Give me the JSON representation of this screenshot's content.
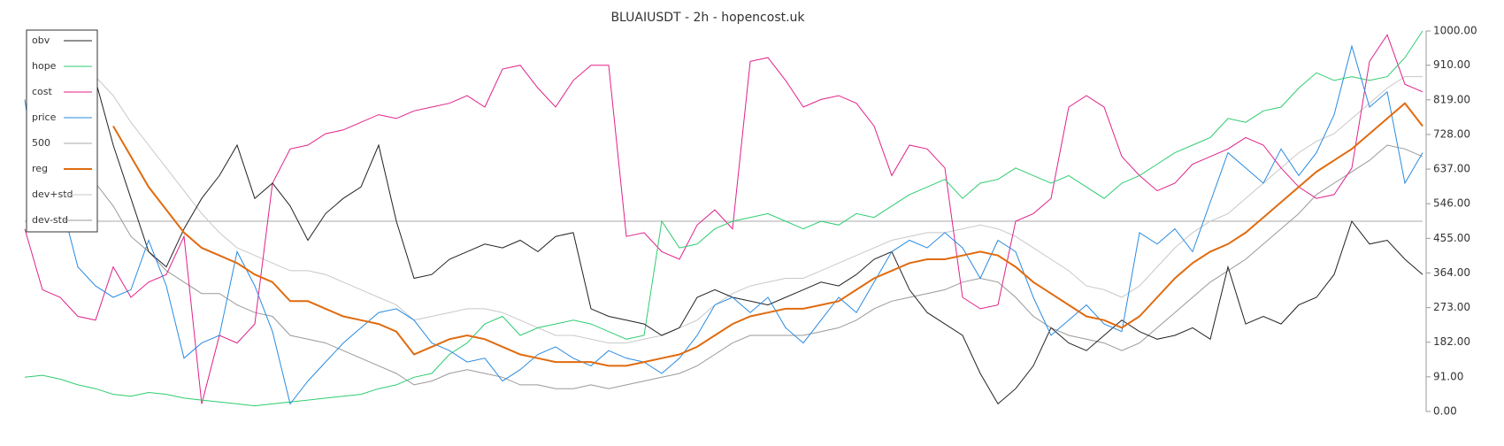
{
  "chart_data": {
    "type": "line",
    "title": "BLUAIUSDT - 2h - hopencost.uk",
    "ylim": [
      0,
      1000
    ],
    "y_axis_side": "right",
    "yticks": [
      {
        "value": 0,
        "label": "0.00"
      },
      {
        "value": 91,
        "label": "91.00"
      },
      {
        "value": 182,
        "label": "182.00"
      },
      {
        "value": 273,
        "label": "273.00"
      },
      {
        "value": 364,
        "label": "364.00"
      },
      {
        "value": 455,
        "label": "455.00"
      },
      {
        "value": 546,
        "label": "546.00"
      },
      {
        "value": 637,
        "label": "637.00"
      },
      {
        "value": 728,
        "label": "728.00"
      },
      {
        "value": 819,
        "label": "819.00"
      },
      {
        "value": 910,
        "label": "910.00"
      },
      {
        "value": 1000,
        "label": "1000.00"
      }
    ],
    "legend": "top-left",
    "series": [
      {
        "name": "obv",
        "color": "#222222",
        "width": 1,
        "values": [
          null,
          null,
          null,
          null,
          870,
          700,
          560,
          420,
          380,
          480,
          560,
          620,
          700,
          560,
          600,
          540,
          450,
          520,
          560,
          590,
          700,
          500,
          350,
          360,
          400,
          420,
          440,
          430,
          450,
          420,
          460,
          470,
          270,
          250,
          240,
          230,
          200,
          220,
          300,
          320,
          300,
          290,
          280,
          300,
          320,
          340,
          330,
          360,
          400,
          420,
          320,
          260,
          230,
          200,
          100,
          20,
          60,
          120,
          220,
          180,
          160,
          200,
          240,
          210,
          190,
          200,
          220,
          190,
          380,
          230,
          250,
          230,
          280,
          300,
          360,
          500,
          440,
          450,
          400,
          360
        ]
      },
      {
        "name": "hope",
        "color": "#2ecc71",
        "width": 1,
        "values": [
          90,
          95,
          85,
          70,
          60,
          45,
          40,
          50,
          45,
          35,
          30,
          25,
          20,
          15,
          20,
          25,
          30,
          35,
          40,
          45,
          60,
          70,
          90,
          100,
          150,
          180,
          230,
          250,
          200,
          220,
          230,
          240,
          230,
          210,
          190,
          200,
          500,
          430,
          440,
          480,
          500,
          510,
          520,
          500,
          480,
          500,
          490,
          520,
          510,
          540,
          570,
          590,
          610,
          560,
          600,
          610,
          640,
          620,
          600,
          620,
          590,
          560,
          600,
          620,
          650,
          680,
          700,
          720,
          770,
          760,
          790,
          800,
          850,
          890,
          870,
          880,
          870,
          880,
          930,
          1000
        ]
      },
      {
        "name": "cost",
        "color": "#e0218a",
        "width": 1,
        "values": [
          480,
          320,
          300,
          250,
          240,
          380,
          300,
          340,
          360,
          460,
          20,
          200,
          180,
          230,
          600,
          690,
          700,
          730,
          740,
          760,
          780,
          770,
          790,
          800,
          810,
          830,
          800,
          900,
          910,
          850,
          800,
          870,
          910,
          910,
          460,
          470,
          420,
          400,
          490,
          530,
          480,
          920,
          930,
          870,
          800,
          820,
          830,
          810,
          750,
          620,
          700,
          690,
          640,
          300,
          270,
          280,
          500,
          520,
          560,
          800,
          830,
          800,
          670,
          620,
          580,
          600,
          650,
          670,
          690,
          720,
          700,
          640,
          590,
          560,
          570,
          640,
          920,
          990,
          860,
          840
        ]
      },
      {
        "name": "price",
        "color": "#2a8be0",
        "width": 1,
        "values": [
          820,
          510,
          560,
          380,
          330,
          300,
          320,
          450,
          330,
          140,
          180,
          200,
          420,
          330,
          210,
          20,
          80,
          130,
          180,
          220,
          260,
          270,
          240,
          180,
          160,
          130,
          140,
          80,
          110,
          150,
          170,
          140,
          120,
          160,
          140,
          130,
          100,
          140,
          200,
          280,
          300,
          260,
          300,
          220,
          180,
          240,
          300,
          260,
          340,
          420,
          450,
          430,
          470,
          430,
          350,
          450,
          420,
          300,
          200,
          240,
          280,
          230,
          210,
          470,
          440,
          480,
          420,
          550,
          680,
          640,
          600,
          690,
          620,
          680,
          780,
          960,
          800,
          840,
          600,
          680
        ]
      },
      {
        "name": "500",
        "color": "#bbbbbb",
        "width": 1.2,
        "values": [
          500,
          500,
          500,
          500,
          500,
          500,
          500,
          500,
          500,
          500,
          500,
          500,
          500,
          500,
          500,
          500,
          500,
          500,
          500,
          500,
          500,
          500,
          500,
          500,
          500,
          500,
          500,
          500,
          500,
          500,
          500,
          500,
          500,
          500,
          500,
          500,
          500,
          500,
          500,
          500,
          500,
          500,
          500,
          500,
          500,
          500,
          500,
          500,
          500,
          500,
          500,
          500,
          500,
          500,
          500,
          500,
          500,
          500,
          500,
          500,
          500,
          500,
          500,
          500,
          500,
          500,
          500,
          500,
          500,
          500,
          500,
          500,
          500,
          500,
          500,
          500,
          500,
          500,
          500,
          500
        ]
      },
      {
        "name": "reg",
        "color": "#e06b10",
        "width": 2,
        "values": [
          null,
          null,
          null,
          null,
          null,
          750,
          670,
          590,
          530,
          470,
          430,
          410,
          390,
          360,
          340,
          290,
          290,
          270,
          250,
          240,
          230,
          210,
          150,
          170,
          190,
          200,
          190,
          170,
          150,
          140,
          130,
          130,
          130,
          120,
          120,
          130,
          140,
          150,
          170,
          200,
          230,
          250,
          260,
          270,
          270,
          280,
          290,
          320,
          350,
          370,
          390,
          400,
          400,
          410,
          420,
          410,
          380,
          340,
          310,
          280,
          250,
          240,
          220,
          250,
          300,
          350,
          390,
          420,
          440,
          470,
          510,
          550,
          590,
          630,
          660,
          690,
          730,
          770,
          810,
          750
        ]
      },
      {
        "name": "dev+std",
        "color": "#c8c8c8",
        "width": 1,
        "values": [
          null,
          null,
          null,
          null,
          880,
          830,
          760,
          700,
          640,
          580,
          520,
          470,
          430,
          410,
          390,
          370,
          370,
          360,
          340,
          320,
          300,
          280,
          240,
          250,
          260,
          270,
          270,
          260,
          240,
          220,
          200,
          200,
          190,
          180,
          180,
          190,
          200,
          220,
          240,
          280,
          310,
          330,
          340,
          350,
          350,
          370,
          390,
          410,
          430,
          450,
          460,
          470,
          470,
          480,
          490,
          480,
          460,
          430,
          400,
          370,
          330,
          320,
          300,
          330,
          380,
          430,
          470,
          500,
          520,
          560,
          600,
          640,
          680,
          710,
          730,
          770,
          810,
          850,
          880,
          880
        ]
      },
      {
        "name": "dev-std",
        "color": "#999999",
        "width": 1,
        "values": [
          null,
          null,
          null,
          null,
          600,
          540,
          460,
          420,
          370,
          340,
          310,
          310,
          280,
          260,
          250,
          200,
          190,
          180,
          160,
          140,
          120,
          100,
          70,
          80,
          100,
          110,
          100,
          90,
          70,
          70,
          60,
          60,
          70,
          60,
          70,
          80,
          90,
          100,
          120,
          150,
          180,
          200,
          200,
          200,
          200,
          210,
          220,
          240,
          270,
          290,
          300,
          310,
          320,
          340,
          350,
          340,
          300,
          250,
          220,
          200,
          190,
          180,
          160,
          180,
          220,
          260,
          300,
          340,
          370,
          400,
          440,
          480,
          520,
          570,
          600,
          630,
          660,
          700,
          690,
          670
        ]
      }
    ]
  }
}
